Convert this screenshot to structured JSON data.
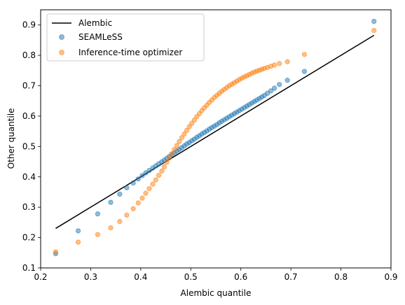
{
  "chart_data": {
    "type": "scatter",
    "title": "",
    "xlabel": "Alembic quantile",
    "ylabel": "Other quantile",
    "xlim": [
      0.2,
      0.9
    ],
    "ylim": [
      0.1,
      0.95
    ],
    "xticks": [
      "0.2",
      "0.3",
      "0.4",
      "0.5",
      "0.6",
      "0.7",
      "0.8",
      "0.9"
    ],
    "yticks": [
      "0.1",
      "0.2",
      "0.3",
      "0.4",
      "0.5",
      "0.6",
      "0.7",
      "0.8",
      "0.9"
    ],
    "grid": false,
    "legend_position": "top-left",
    "series": [
      {
        "name": "Alembic",
        "type": "line",
        "color": "#000000",
        "x": [
          0.23,
          0.866
        ],
        "y": [
          0.23,
          0.866
        ]
      },
      {
        "name": "SEAMLeSS",
        "type": "scatter",
        "color": "#1f77b4",
        "x": [
          0.23,
          0.275,
          0.314,
          0.34,
          0.358,
          0.372,
          0.385,
          0.395,
          0.403,
          0.41,
          0.417,
          0.424,
          0.43,
          0.436,
          0.442,
          0.447,
          0.452,
          0.457,
          0.462,
          0.467,
          0.472,
          0.477,
          0.482,
          0.487,
          0.492,
          0.497,
          0.502,
          0.507,
          0.512,
          0.517,
          0.522,
          0.527,
          0.532,
          0.537,
          0.542,
          0.547,
          0.552,
          0.557,
          0.562,
          0.567,
          0.572,
          0.577,
          0.582,
          0.587,
          0.592,
          0.597,
          0.602,
          0.607,
          0.612,
          0.617,
          0.622,
          0.627,
          0.632,
          0.637,
          0.642,
          0.647,
          0.653,
          0.66,
          0.667,
          0.677,
          0.693,
          0.727,
          0.866
        ],
        "y": [
          0.147,
          0.222,
          0.278,
          0.316,
          0.343,
          0.364,
          0.38,
          0.393,
          0.404,
          0.413,
          0.421,
          0.429,
          0.436,
          0.443,
          0.449,
          0.455,
          0.461,
          0.467,
          0.473,
          0.479,
          0.485,
          0.49,
          0.496,
          0.502,
          0.508,
          0.513,
          0.519,
          0.524,
          0.53,
          0.535,
          0.541,
          0.546,
          0.551,
          0.557,
          0.562,
          0.567,
          0.572,
          0.578,
          0.583,
          0.588,
          0.593,
          0.598,
          0.603,
          0.608,
          0.613,
          0.618,
          0.623,
          0.628,
          0.633,
          0.638,
          0.643,
          0.648,
          0.653,
          0.658,
          0.663,
          0.668,
          0.675,
          0.683,
          0.692,
          0.704,
          0.718,
          0.747,
          0.912
        ]
      },
      {
        "name": "Inference-time optimizer",
        "type": "scatter",
        "color": "#ff7f0e",
        "x": [
          0.23,
          0.275,
          0.314,
          0.34,
          0.358,
          0.372,
          0.385,
          0.395,
          0.403,
          0.41,
          0.417,
          0.424,
          0.43,
          0.436,
          0.442,
          0.447,
          0.452,
          0.457,
          0.462,
          0.467,
          0.472,
          0.477,
          0.482,
          0.487,
          0.492,
          0.497,
          0.502,
          0.507,
          0.512,
          0.517,
          0.522,
          0.527,
          0.532,
          0.537,
          0.542,
          0.547,
          0.552,
          0.557,
          0.562,
          0.567,
          0.572,
          0.577,
          0.582,
          0.587,
          0.592,
          0.597,
          0.602,
          0.607,
          0.612,
          0.617,
          0.622,
          0.627,
          0.632,
          0.637,
          0.642,
          0.647,
          0.653,
          0.66,
          0.667,
          0.677,
          0.693,
          0.727,
          0.866
        ],
        "y": [
          0.153,
          0.185,
          0.21,
          0.232,
          0.253,
          0.274,
          0.295,
          0.314,
          0.33,
          0.346,
          0.361,
          0.376,
          0.39,
          0.405,
          0.419,
          0.433,
          0.448,
          0.462,
          0.476,
          0.49,
          0.503,
          0.516,
          0.529,
          0.541,
          0.553,
          0.565,
          0.576,
          0.587,
          0.598,
          0.608,
          0.618,
          0.627,
          0.636,
          0.645,
          0.653,
          0.661,
          0.668,
          0.675,
          0.682,
          0.688,
          0.694,
          0.7,
          0.705,
          0.71,
          0.715,
          0.72,
          0.725,
          0.729,
          0.733,
          0.737,
          0.741,
          0.745,
          0.748,
          0.751,
          0.754,
          0.757,
          0.76,
          0.764,
          0.768,
          0.773,
          0.779,
          0.803,
          0.882
        ]
      }
    ]
  }
}
